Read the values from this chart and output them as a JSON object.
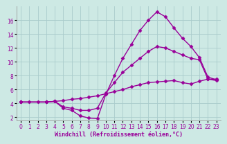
{
  "xlabel": "Windchill (Refroidissement éolien,°C)",
  "bg_color": "#cde9e4",
  "line_color": "#990099",
  "grid_color": "#aacccc",
  "line1_x": [
    0,
    1,
    2,
    3,
    4,
    5,
    6,
    7,
    8,
    9,
    10,
    11,
    12,
    13,
    14,
    15,
    16,
    17,
    18,
    19,
    20,
    21,
    22,
    23
  ],
  "line1_y": [
    4.2,
    4.2,
    4.2,
    4.2,
    4.3,
    4.4,
    4.6,
    4.7,
    4.9,
    5.1,
    5.4,
    5.7,
    6.0,
    6.4,
    6.7,
    7.0,
    7.1,
    7.2,
    7.3,
    7.0,
    6.8,
    7.2,
    7.5,
    7.5
  ],
  "line2_x": [
    0,
    3,
    4,
    5,
    6,
    7,
    8,
    9,
    10,
    11,
    12,
    13,
    14,
    15,
    16,
    17,
    18,
    19,
    20,
    21,
    22,
    23
  ],
  "line2_y": [
    4.2,
    4.2,
    4.3,
    3.5,
    3.3,
    3.0,
    3.0,
    3.3,
    5.5,
    7.0,
    8.5,
    9.5,
    10.5,
    11.5,
    12.2,
    12.0,
    11.5,
    11.0,
    10.5,
    10.3,
    7.5,
    7.3
  ],
  "line3_x": [
    0,
    3,
    4,
    5,
    6,
    7,
    8,
    9,
    10,
    11,
    12,
    13,
    14,
    15,
    16,
    17,
    18,
    19,
    20,
    21,
    22,
    23
  ],
  "line3_y": [
    4.2,
    4.2,
    4.3,
    3.3,
    3.0,
    2.2,
    1.9,
    1.8,
    5.3,
    8.0,
    10.5,
    12.5,
    14.5,
    16.0,
    17.2,
    16.5,
    14.9,
    13.4,
    12.2,
    10.6,
    7.8,
    7.4
  ],
  "ylim": [
    1.5,
    18
  ],
  "xlim": [
    -0.5,
    23.5
  ],
  "yticks": [
    2,
    4,
    6,
    8,
    10,
    12,
    14,
    16
  ],
  "xticks": [
    0,
    1,
    2,
    3,
    4,
    5,
    6,
    7,
    8,
    9,
    10,
    11,
    12,
    13,
    14,
    15,
    16,
    17,
    18,
    19,
    20,
    21,
    22,
    23
  ],
  "marker": "D",
  "markersize": 2.5,
  "linewidth": 1.0,
  "tick_fontsize": 5.5,
  "label_fontsize": 6.0
}
